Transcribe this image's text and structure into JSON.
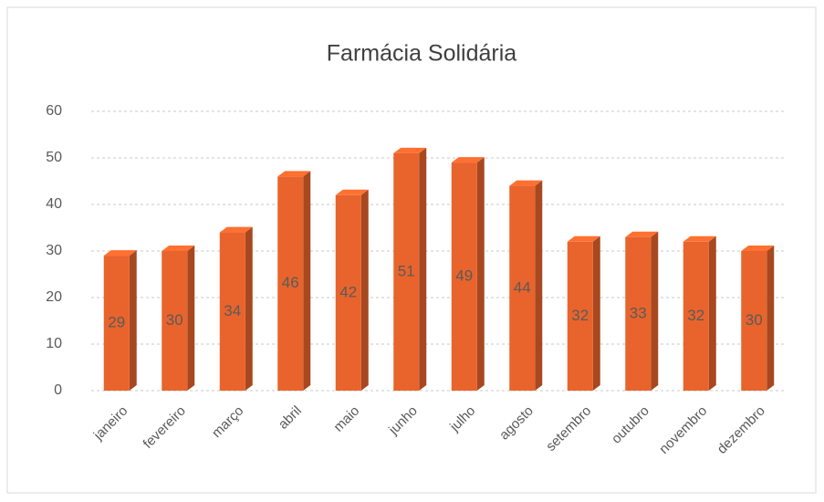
{
  "chart_data": {
    "type": "bar",
    "title": "Farmácia Solidária",
    "categories": [
      "janeiro",
      "fevereiro",
      "março",
      "abril",
      "maio",
      "junho",
      "julho",
      "agosto",
      "setembro",
      "outubro",
      "novembro",
      "dezembro"
    ],
    "values": [
      29,
      30,
      34,
      46,
      42,
      51,
      49,
      44,
      32,
      33,
      32,
      30
    ],
    "color": "#e8642c",
    "ylim": [
      0,
      60
    ],
    "yticks": [
      0,
      10,
      20,
      30,
      40,
      50,
      60
    ],
    "grid": true
  }
}
